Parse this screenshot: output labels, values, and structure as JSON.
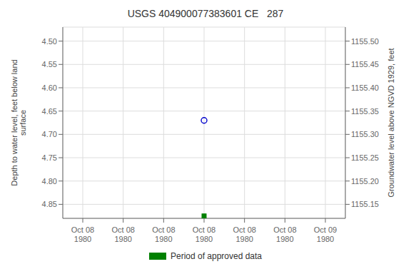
{
  "chart_data": {
    "type": "scatter",
    "title": "USGS 404900077383601 CE   287",
    "y_label": "Depth to water level, feet below land\nsurface",
    "y2_label": "Groundwater level above NGVD 1929, feet",
    "categories": [
      "Oct 08\n1980",
      "Oct 08\n1980",
      "Oct 08\n1980",
      "Oct 08\n1980",
      "Oct 08\n1980",
      "Oct 08\n1980",
      "Oct 09\n1980"
    ],
    "series": [
      {
        "color": "#0000cc",
        "marker": "circle",
        "values": [
          null,
          null,
          null,
          4.67,
          null,
          null,
          null
        ]
      },
      {
        "name": "Period of approved data",
        "color": "#008000",
        "marker": "square",
        "values": [
          null,
          null,
          null,
          4.875,
          null,
          null,
          null
        ]
      }
    ],
    "ylim": [
      4.88,
      4.47
    ],
    "yticks": [
      {
        "value": 4.5,
        "label": "4.50"
      },
      {
        "value": 4.55,
        "label": "4.55"
      },
      {
        "value": 4.6,
        "label": "4.60"
      },
      {
        "value": 4.65,
        "label": "4.65"
      },
      {
        "value": 4.7,
        "label": "4.70"
      },
      {
        "value": 4.75,
        "label": "4.75"
      },
      {
        "value": 4.8,
        "label": "4.80"
      },
      {
        "value": 4.85,
        "label": "4.85"
      }
    ],
    "y2lim": [
      1155.12,
      1155.53
    ],
    "y2ticks": [
      {
        "value": 1155.5,
        "label": "1155.50"
      },
      {
        "value": 1155.45,
        "label": "1155.45"
      },
      {
        "value": 1155.4,
        "label": "1155.40"
      },
      {
        "value": 1155.35,
        "label": "1155.35"
      },
      {
        "value": 1155.3,
        "label": "1155.30"
      },
      {
        "value": 1155.25,
        "label": "1155.25"
      },
      {
        "value": 1155.2,
        "label": "1155.20"
      },
      {
        "value": 1155.15,
        "label": "1155.15"
      }
    ],
    "grid": true,
    "legend": "bottom"
  }
}
